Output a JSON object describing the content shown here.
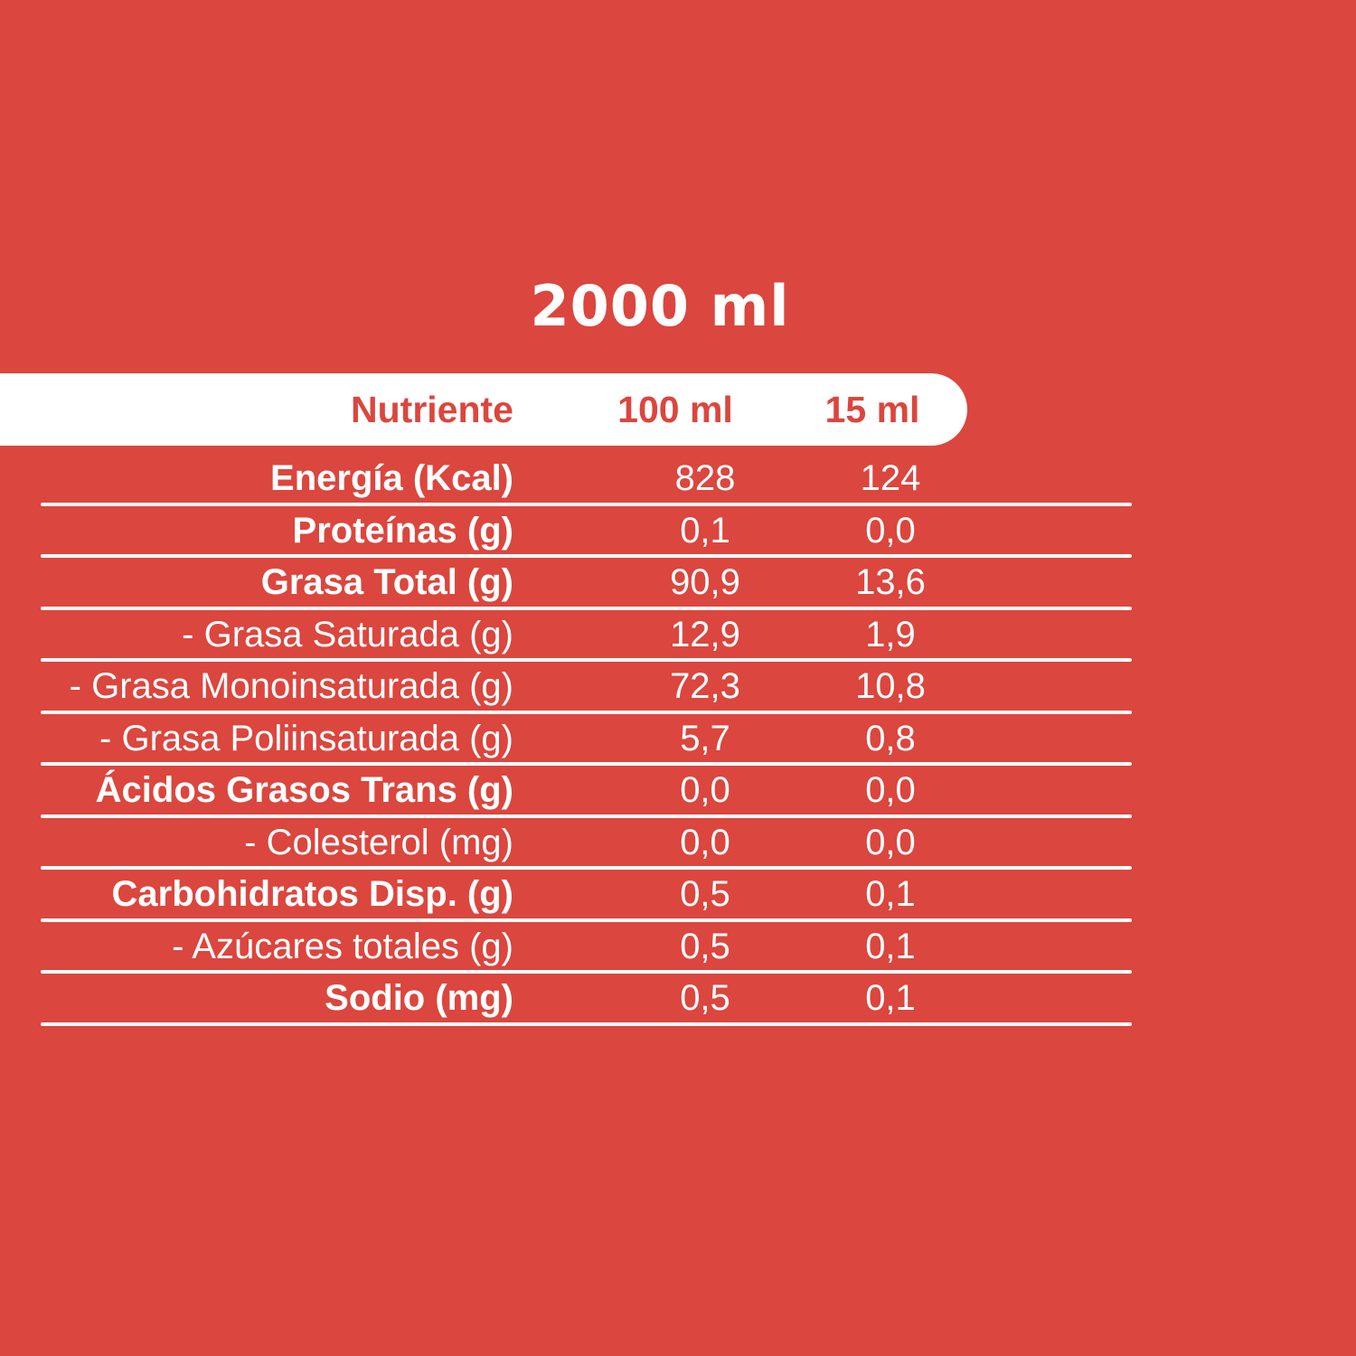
{
  "colors": {
    "background": "#DB463E",
    "table_text": "#FFFFFF",
    "header_bar_background": "#FFFFFF",
    "header_bar_text": "#DB463E",
    "separator_line": "#FFFFFF"
  },
  "title": "2000 ml",
  "table": {
    "header": {
      "nutrient": "Nutriente",
      "per_100ml": "100 ml",
      "per_15ml": "15 ml"
    },
    "rows": [
      {
        "label": "Energía (Kcal)",
        "per_100ml": "828",
        "per_15ml": "124",
        "bold": true
      },
      {
        "label": "Proteínas (g)",
        "per_100ml": "0,1",
        "per_15ml": "0,0",
        "bold": true
      },
      {
        "label": "Grasa Total (g)",
        "per_100ml": "90,9",
        "per_15ml": "13,6",
        "bold": true
      },
      {
        "label": "- Grasa Saturada (g)",
        "per_100ml": "12,9",
        "per_15ml": "1,9",
        "bold": false
      },
      {
        "label": "- Grasa Monoinsaturada (g)",
        "per_100ml": "72,3",
        "per_15ml": "10,8",
        "bold": false
      },
      {
        "label": "- Grasa Poliinsaturada (g)",
        "per_100ml": "5,7",
        "per_15ml": "0,8",
        "bold": false
      },
      {
        "label": "Ácidos Grasos Trans (g)",
        "per_100ml": "0,0",
        "per_15ml": "0,0",
        "bold": true
      },
      {
        "label": "- Colesterol (mg)",
        "per_100ml": "0,0",
        "per_15ml": "0,0",
        "bold": false
      },
      {
        "label": "Carbohidratos Disp. (g)",
        "per_100ml": "0,5",
        "per_15ml": "0,1",
        "bold": true
      },
      {
        "label": "- Azúcares totales (g)",
        "per_100ml": "0,5",
        "per_15ml": "0,1",
        "bold": false
      },
      {
        "label": "Sodio (mg)",
        "per_100ml": "0,5",
        "per_15ml": "0,1",
        "bold": true
      }
    ]
  }
}
